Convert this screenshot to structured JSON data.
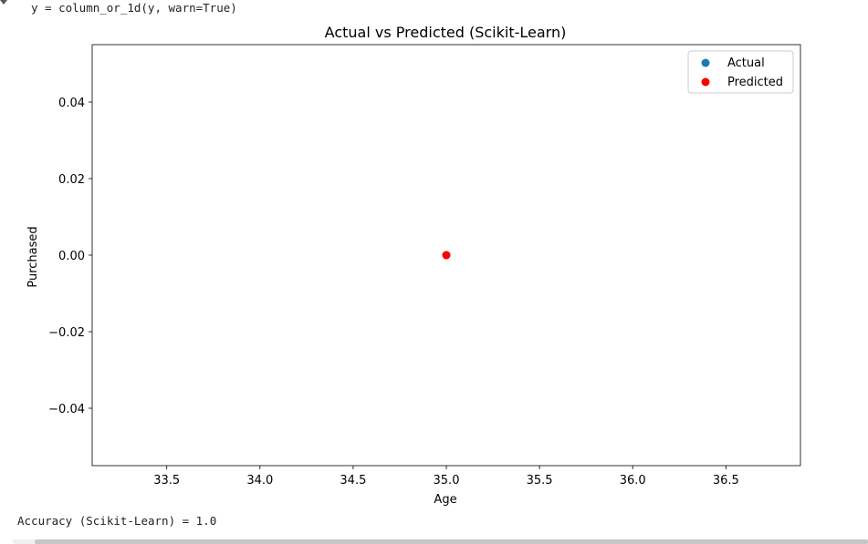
{
  "code_line": "y = column_or_1d(y, warn=True)",
  "output_line": "Accuracy (Scikit-Learn) = 1.0",
  "chart_data": {
    "type": "scatter",
    "title": "Actual vs Predicted (Scikit-Learn)",
    "xlabel": "Age",
    "ylabel": "Purchased",
    "xlim": [
      33.1,
      36.9
    ],
    "ylim": [
      -0.055,
      0.055
    ],
    "x_ticks": [
      33.5,
      34.0,
      34.5,
      35.0,
      35.5,
      36.0,
      36.5
    ],
    "x_tick_labels": [
      "33.5",
      "34.0",
      "34.5",
      "35.0",
      "35.5",
      "36.0",
      "36.5"
    ],
    "y_ticks": [
      0.04,
      0.02,
      0.0,
      -0.02,
      -0.04
    ],
    "y_tick_labels": [
      "0.04",
      "0.02",
      "0.00",
      "−0.02",
      "−0.04"
    ],
    "grid": false,
    "legend_position": "top-right",
    "series": [
      {
        "name": "Actual",
        "color": "#1f77b4",
        "points": [
          {
            "x": 35.0,
            "y": 0.0
          }
        ]
      },
      {
        "name": "Predicted",
        "color": "#ff0000",
        "points": [
          {
            "x": 35.0,
            "y": 0.0
          }
        ]
      }
    ]
  }
}
